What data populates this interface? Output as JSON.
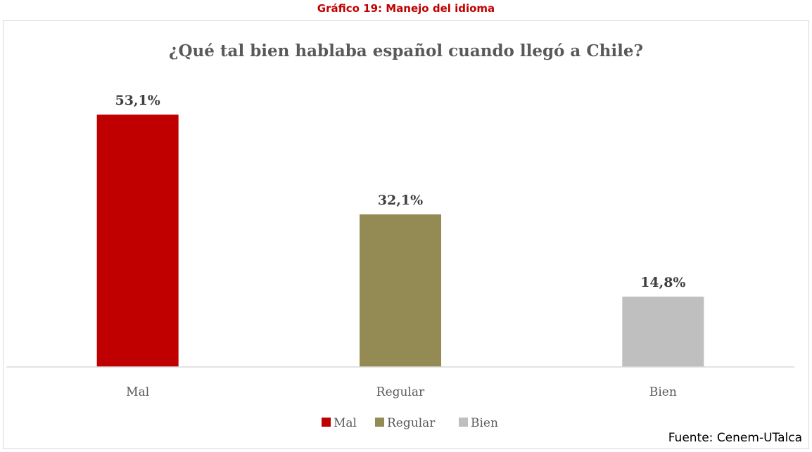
{
  "caption": "Gráfico 19: Manejo del idioma",
  "source": "Fuente: Cenem-UTalca",
  "chart_data": {
    "type": "bar",
    "title": "¿Qué tal bien hablaba español cuando llegó a Chile?",
    "categories": [
      "Mal",
      "Regular",
      "Bien"
    ],
    "values": [
      53.1,
      32.1,
      14.8
    ],
    "value_labels": [
      "53,1%",
      "32,1%",
      "14,8%"
    ],
    "colors": [
      "#c00000",
      "#948a54",
      "#bfbfbf"
    ],
    "legend": {
      "position": "bottom",
      "entries": [
        "Mal",
        "Regular",
        "Bien"
      ]
    },
    "xlabel": "",
    "ylabel": "",
    "ylim": [
      0,
      53.1
    ],
    "grid": false,
    "y_axis_visible": false
  }
}
